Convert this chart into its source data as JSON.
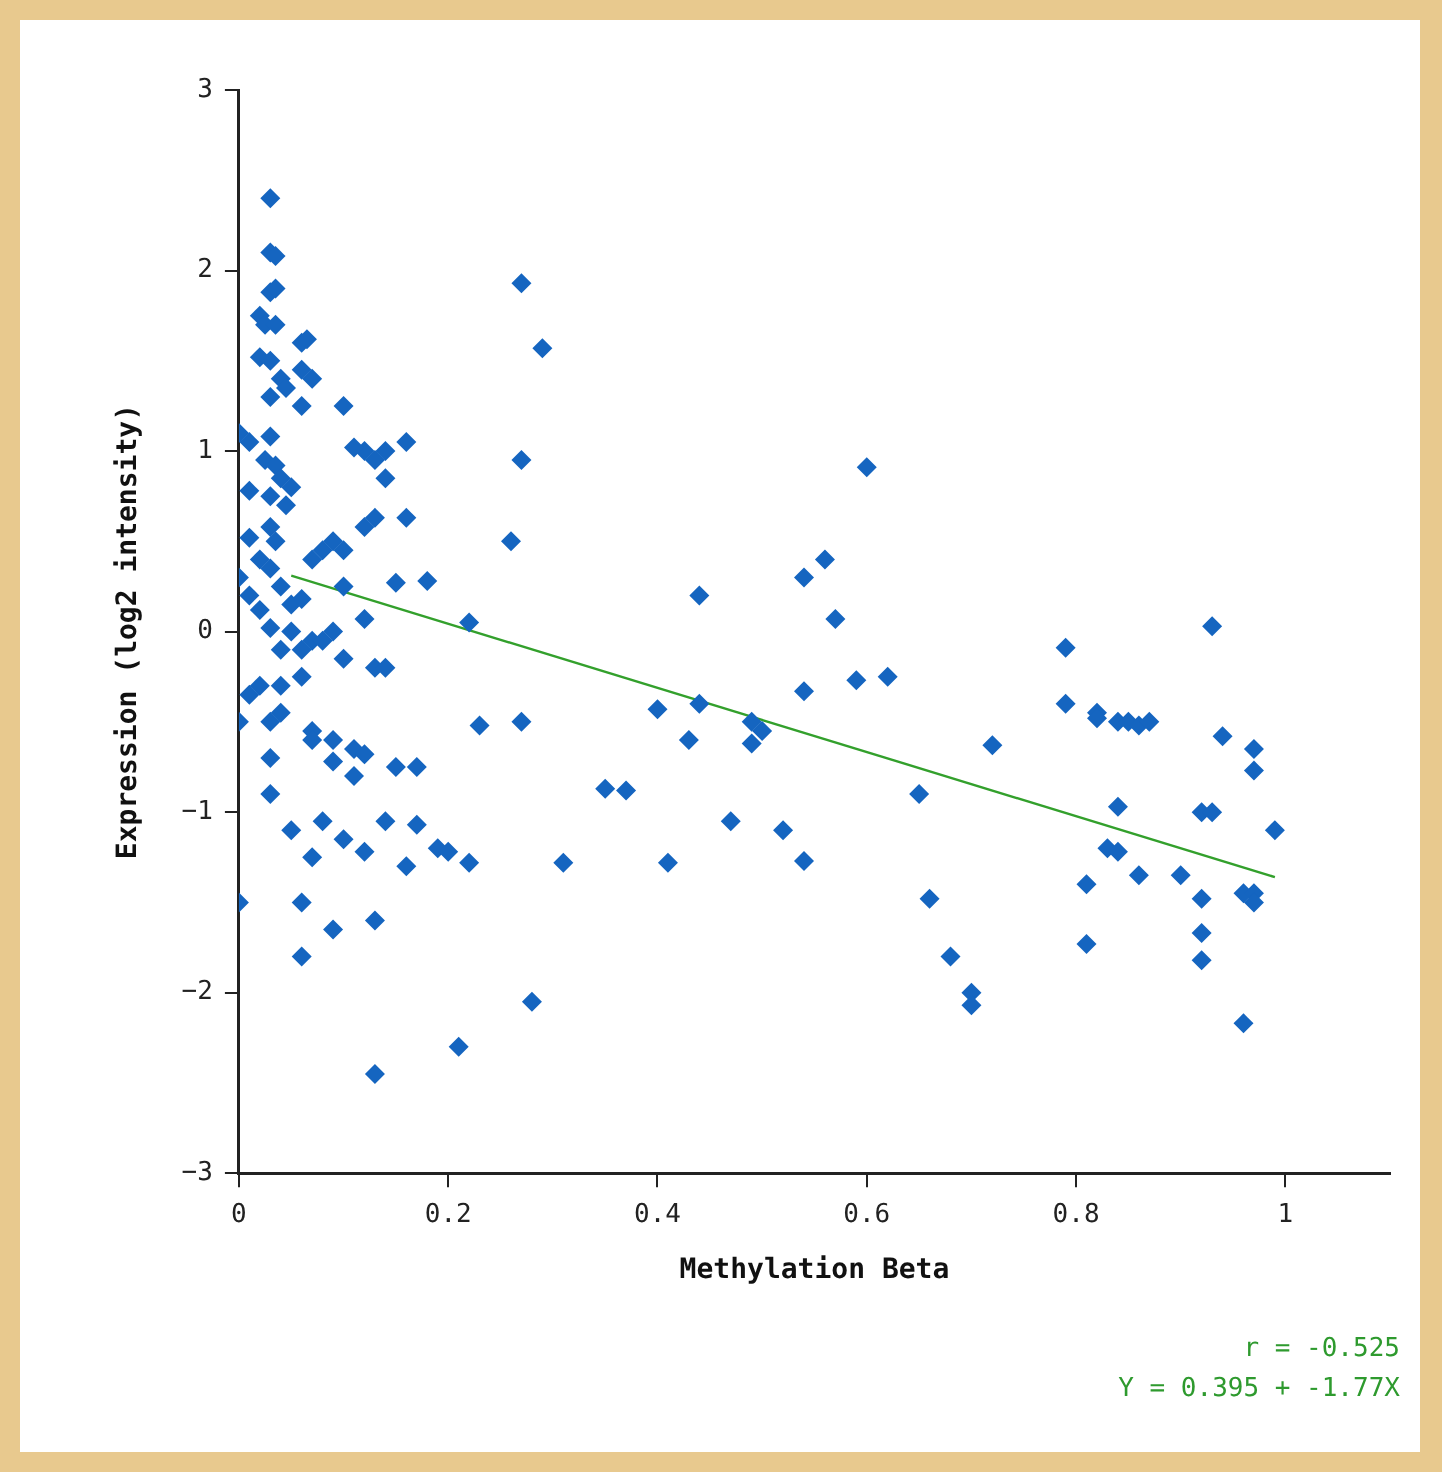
{
  "chart_data": {
    "type": "scatter",
    "xlabel": "Methylation Beta",
    "ylabel": "Expression (log2 intensity)",
    "xlim": [
      0,
      1.1
    ],
    "xticks": [
      0,
      0.2,
      0.4,
      0.6,
      0.8,
      1
    ],
    "ylim": [
      -3,
      3
    ],
    "yticks": [
      -3,
      -2,
      -1,
      0,
      1,
      2,
      3
    ],
    "grid": false,
    "legend": false,
    "marker": "diamond",
    "annotations": [
      "r = -0.525",
      "Y = 0.395 + -1.77X"
    ],
    "series": [
      {
        "color": "#1565c0",
        "x": [
          0.03,
          0.03,
          0.035,
          0.03,
          0.035,
          0.02,
          0.025,
          0.035,
          0.02,
          0.03,
          0.04,
          0.03,
          0.045,
          0.06,
          0.065,
          0.06,
          0.07,
          0.06,
          0.1,
          0.0,
          0.01,
          0.03,
          0.025,
          0.035,
          0.04,
          0.03,
          0.01,
          0.05,
          0.045,
          0.03,
          0.01,
          0.035,
          0.02,
          0.0,
          0.01,
          0.03,
          0.04,
          0.02,
          0.05,
          0.03,
          0.05,
          0.06,
          0.04,
          0.06,
          0.07,
          0.08,
          0.09,
          0.08,
          0.09,
          0.07,
          0.1,
          0.1,
          0.12,
          0.1,
          0.06,
          0.04,
          0.02,
          0.01,
          0.0,
          0.03,
          0.04,
          0.03,
          0.03,
          0.05,
          0.06,
          0.06,
          0.0,
          0.07,
          0.07,
          0.07,
          0.08,
          0.09,
          0.09,
          0.09,
          0.1,
          0.11,
          0.11,
          0.12,
          0.12,
          0.13,
          0.13,
          0.13,
          0.14,
          0.14,
          0.15,
          0.16,
          0.17,
          0.17,
          0.19,
          0.2,
          0.22,
          0.21,
          0.23,
          0.22,
          0.18,
          0.15,
          0.16,
          0.12,
          0.13,
          0.12,
          0.13,
          0.14,
          0.14,
          0.16,
          0.11,
          0.26,
          0.27,
          0.27,
          0.29,
          0.27,
          0.28,
          0.31,
          0.35,
          0.37,
          0.4,
          0.41,
          0.43,
          0.44,
          0.44,
          0.47,
          0.49,
          0.49,
          0.5,
          0.52,
          0.54,
          0.54,
          0.54,
          0.56,
          0.57,
          0.59,
          0.6,
          0.62,
          0.65,
          0.66,
          0.68,
          0.7,
          0.7,
          0.72,
          0.79,
          0.79,
          0.81,
          0.81,
          0.82,
          0.82,
          0.83,
          0.84,
          0.84,
          0.84,
          0.85,
          0.86,
          0.86,
          0.87,
          0.9,
          0.92,
          0.92,
          0.92,
          0.92,
          0.93,
          0.93,
          0.94,
          0.96,
          0.96,
          0.97,
          0.97,
          0.97,
          0.97,
          0.99
        ],
        "values": [
          2.4,
          2.1,
          2.08,
          1.88,
          1.9,
          1.75,
          1.7,
          1.7,
          1.52,
          1.5,
          1.4,
          1.3,
          1.35,
          1.6,
          1.62,
          1.45,
          1.4,
          1.25,
          1.25,
          1.1,
          1.05,
          1.08,
          0.95,
          0.92,
          0.85,
          0.75,
          0.78,
          0.8,
          0.7,
          0.58,
          0.52,
          0.5,
          0.4,
          0.3,
          0.2,
          0.35,
          0.25,
          0.12,
          0.15,
          0.02,
          0.0,
          0.18,
          -0.1,
          -0.1,
          -0.05,
          -0.05,
          0.0,
          0.45,
          0.5,
          0.4,
          0.45,
          0.25,
          0.07,
          -0.15,
          -0.25,
          -0.3,
          -0.3,
          -0.35,
          -0.5,
          -0.5,
          -0.45,
          -0.7,
          -0.9,
          -1.1,
          -1.5,
          -1.8,
          -1.5,
          -1.25,
          -0.55,
          -0.6,
          -1.05,
          -0.72,
          -0.6,
          -1.65,
          -1.15,
          -0.8,
          -0.65,
          -0.68,
          -1.22,
          -1.6,
          -2.45,
          -0.2,
          -0.2,
          -1.05,
          -0.75,
          -1.3,
          -1.07,
          -0.75,
          -1.2,
          -1.22,
          -1.28,
          -2.3,
          -0.52,
          0.05,
          0.28,
          0.27,
          0.63,
          0.58,
          0.63,
          1.0,
          0.95,
          1.0,
          0.85,
          1.05,
          1.02,
          0.5,
          0.95,
          1.93,
          1.57,
          -0.5,
          -2.05,
          -1.28,
          -0.87,
          -0.88,
          -0.43,
          -1.28,
          -0.6,
          0.2,
          -0.4,
          -1.05,
          -0.5,
          -0.62,
          -0.55,
          -1.1,
          0.3,
          -0.33,
          -1.27,
          0.4,
          0.07,
          -0.27,
          0.91,
          -0.25,
          -0.9,
          -1.48,
          -1.8,
          -2.0,
          -2.07,
          -0.63,
          -0.09,
          -0.4,
          -1.4,
          -1.73,
          -0.45,
          -0.48,
          -1.2,
          -0.5,
          -0.97,
          -1.22,
          -0.5,
          -1.35,
          -0.52,
          -0.5,
          -1.35,
          -1.0,
          -1.48,
          -1.67,
          -1.82,
          0.03,
          -1.0,
          -0.58,
          -1.45,
          -2.17,
          -0.65,
          -0.77,
          -1.45,
          -1.5,
          -1.1
        ]
      },
      {
        "type": "line",
        "color": "#33a02c",
        "marker": "none",
        "x": [
          0.05,
          0.99
        ],
        "values": [
          0.31,
          -1.36
        ]
      }
    ]
  }
}
